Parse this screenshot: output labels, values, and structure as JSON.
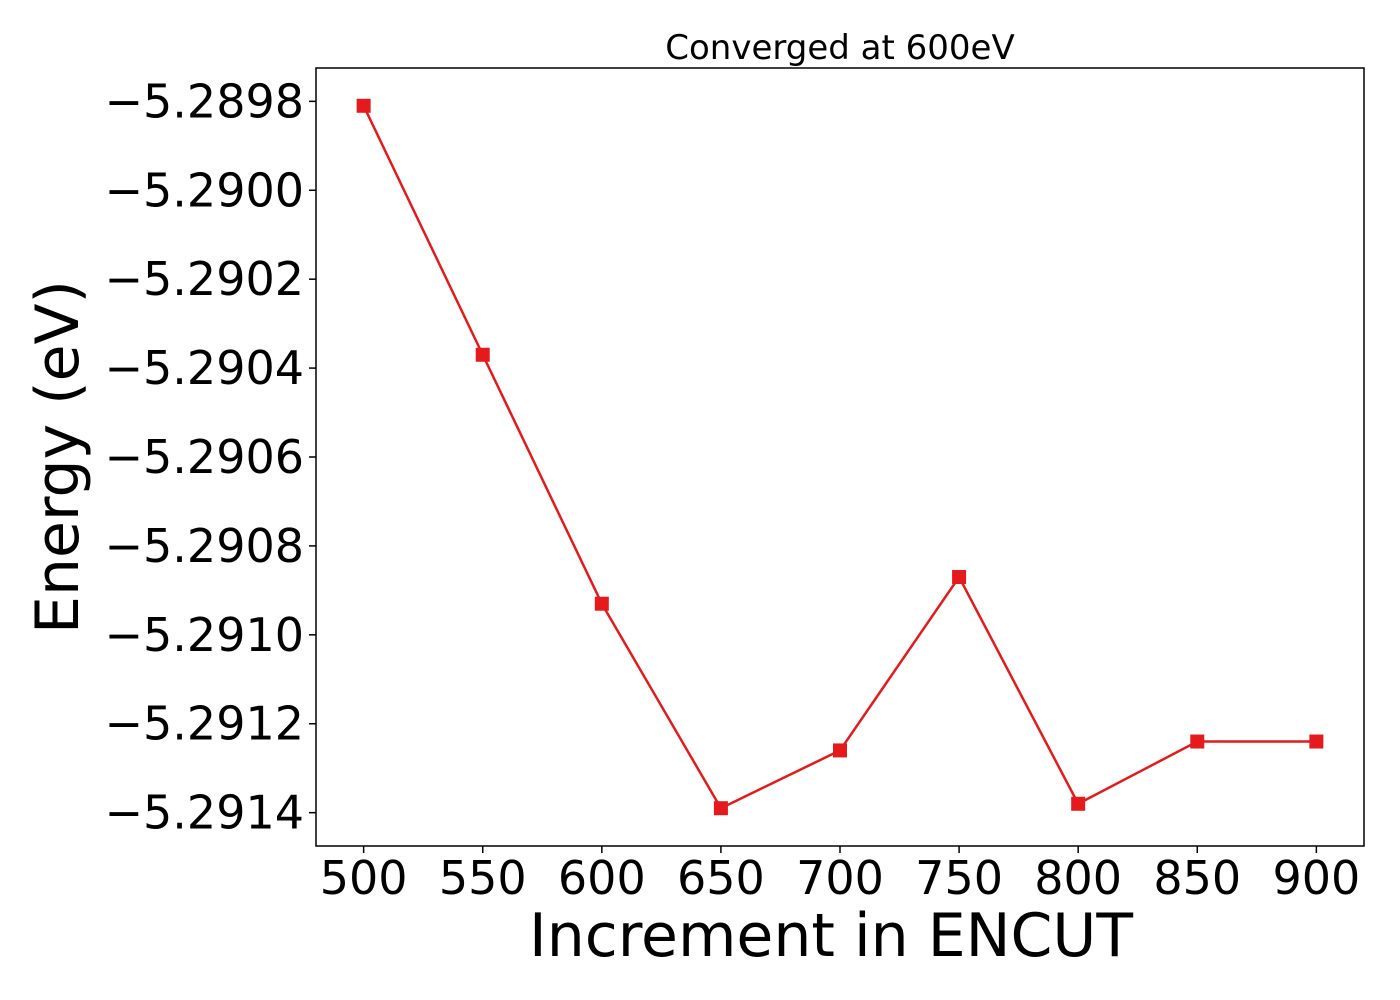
{
  "chart_data": {
    "type": "line",
    "title": "Converged at 600eV",
    "xlabel": "Increment in ENCUT",
    "ylabel": "Energy (eV)",
    "x": [
      500,
      550,
      600,
      650,
      700,
      750,
      800,
      850,
      900
    ],
    "series": [
      {
        "values": [
          -5.28981,
          -5.29037,
          -5.29093,
          -5.29139,
          -5.29126,
          -5.29087,
          -5.29138,
          -5.29124,
          -5.29124
        ],
        "color": "#e41a1c",
        "marker": "square"
      }
    ],
    "xticks": [
      500,
      550,
      600,
      650,
      700,
      750,
      800,
      850,
      900
    ],
    "xtick_labels": [
      "500",
      "550",
      "600",
      "650",
      "700",
      "750",
      "800",
      "850",
      "900"
    ],
    "yticks": [
      -5.2898,
      -5.29,
      -5.2902,
      -5.2904,
      -5.2906,
      -5.2908,
      -5.291,
      -5.2912,
      -5.2914
    ],
    "ytick_labels": [
      "−5.2898",
      "−5.2900",
      "−5.2902",
      "−5.2904",
      "−5.2906",
      "−5.2908",
      "−5.2910",
      "−5.2912",
      "−5.2914"
    ],
    "xlim": [
      480,
      920
    ],
    "ylim": [
      -5.291475,
      -5.289725
    ],
    "grid": false,
    "legend": "none"
  }
}
